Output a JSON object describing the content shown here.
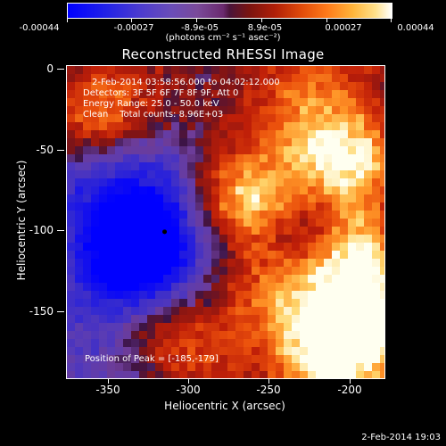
{
  "colorbar": {
    "labels": [
      "-0.00044",
      "-0.00027",
      "-8.9e-05",
      "8.9e-05",
      "0.00027",
      "0.00044"
    ],
    "units": "(photons cm⁻² s⁻¹ asec⁻²)"
  },
  "title": "Reconstructed RHESSI Image",
  "annotations": {
    "time_range": "2-Feb-2014 03:58:56.000 to 04:02:12.000",
    "detectors": "Detectors: 3F 5F 6F 7F 8F 9F, Att 0",
    "energy": "Energy Range: 25.0 - 50.0 keV",
    "method": "Clean    Total counts: 8.96E+03",
    "peak": "Position of Peak = [-185,-179]"
  },
  "axes": {
    "xlabel": "Heliocentric X (arcsec)",
    "ylabel": "Heliocentric Y (arcsec)",
    "xticks": [
      "-350",
      "-300",
      "-250",
      "-200"
    ],
    "yticks": [
      "0",
      "-50",
      "-100",
      "-150"
    ]
  },
  "footer": "2-Feb-2014 19:03",
  "chart_data": {
    "type": "heatmap",
    "title": "Reconstructed RHESSI Image",
    "xlabel": "Heliocentric X (arcsec)",
    "ylabel": "Heliocentric Y (arcsec)",
    "xlim": [
      -375,
      -180
    ],
    "ylim": [
      -192,
      2
    ],
    "colorbar_range": [
      -0.00044,
      0.00044
    ],
    "colormap": [
      "#0000ff",
      "#6a4db8",
      "#4a143a",
      "#b01f08",
      "#ff7a1a",
      "#ffffff"
    ],
    "marker": {
      "x": -315,
      "y": -101
    }
  }
}
